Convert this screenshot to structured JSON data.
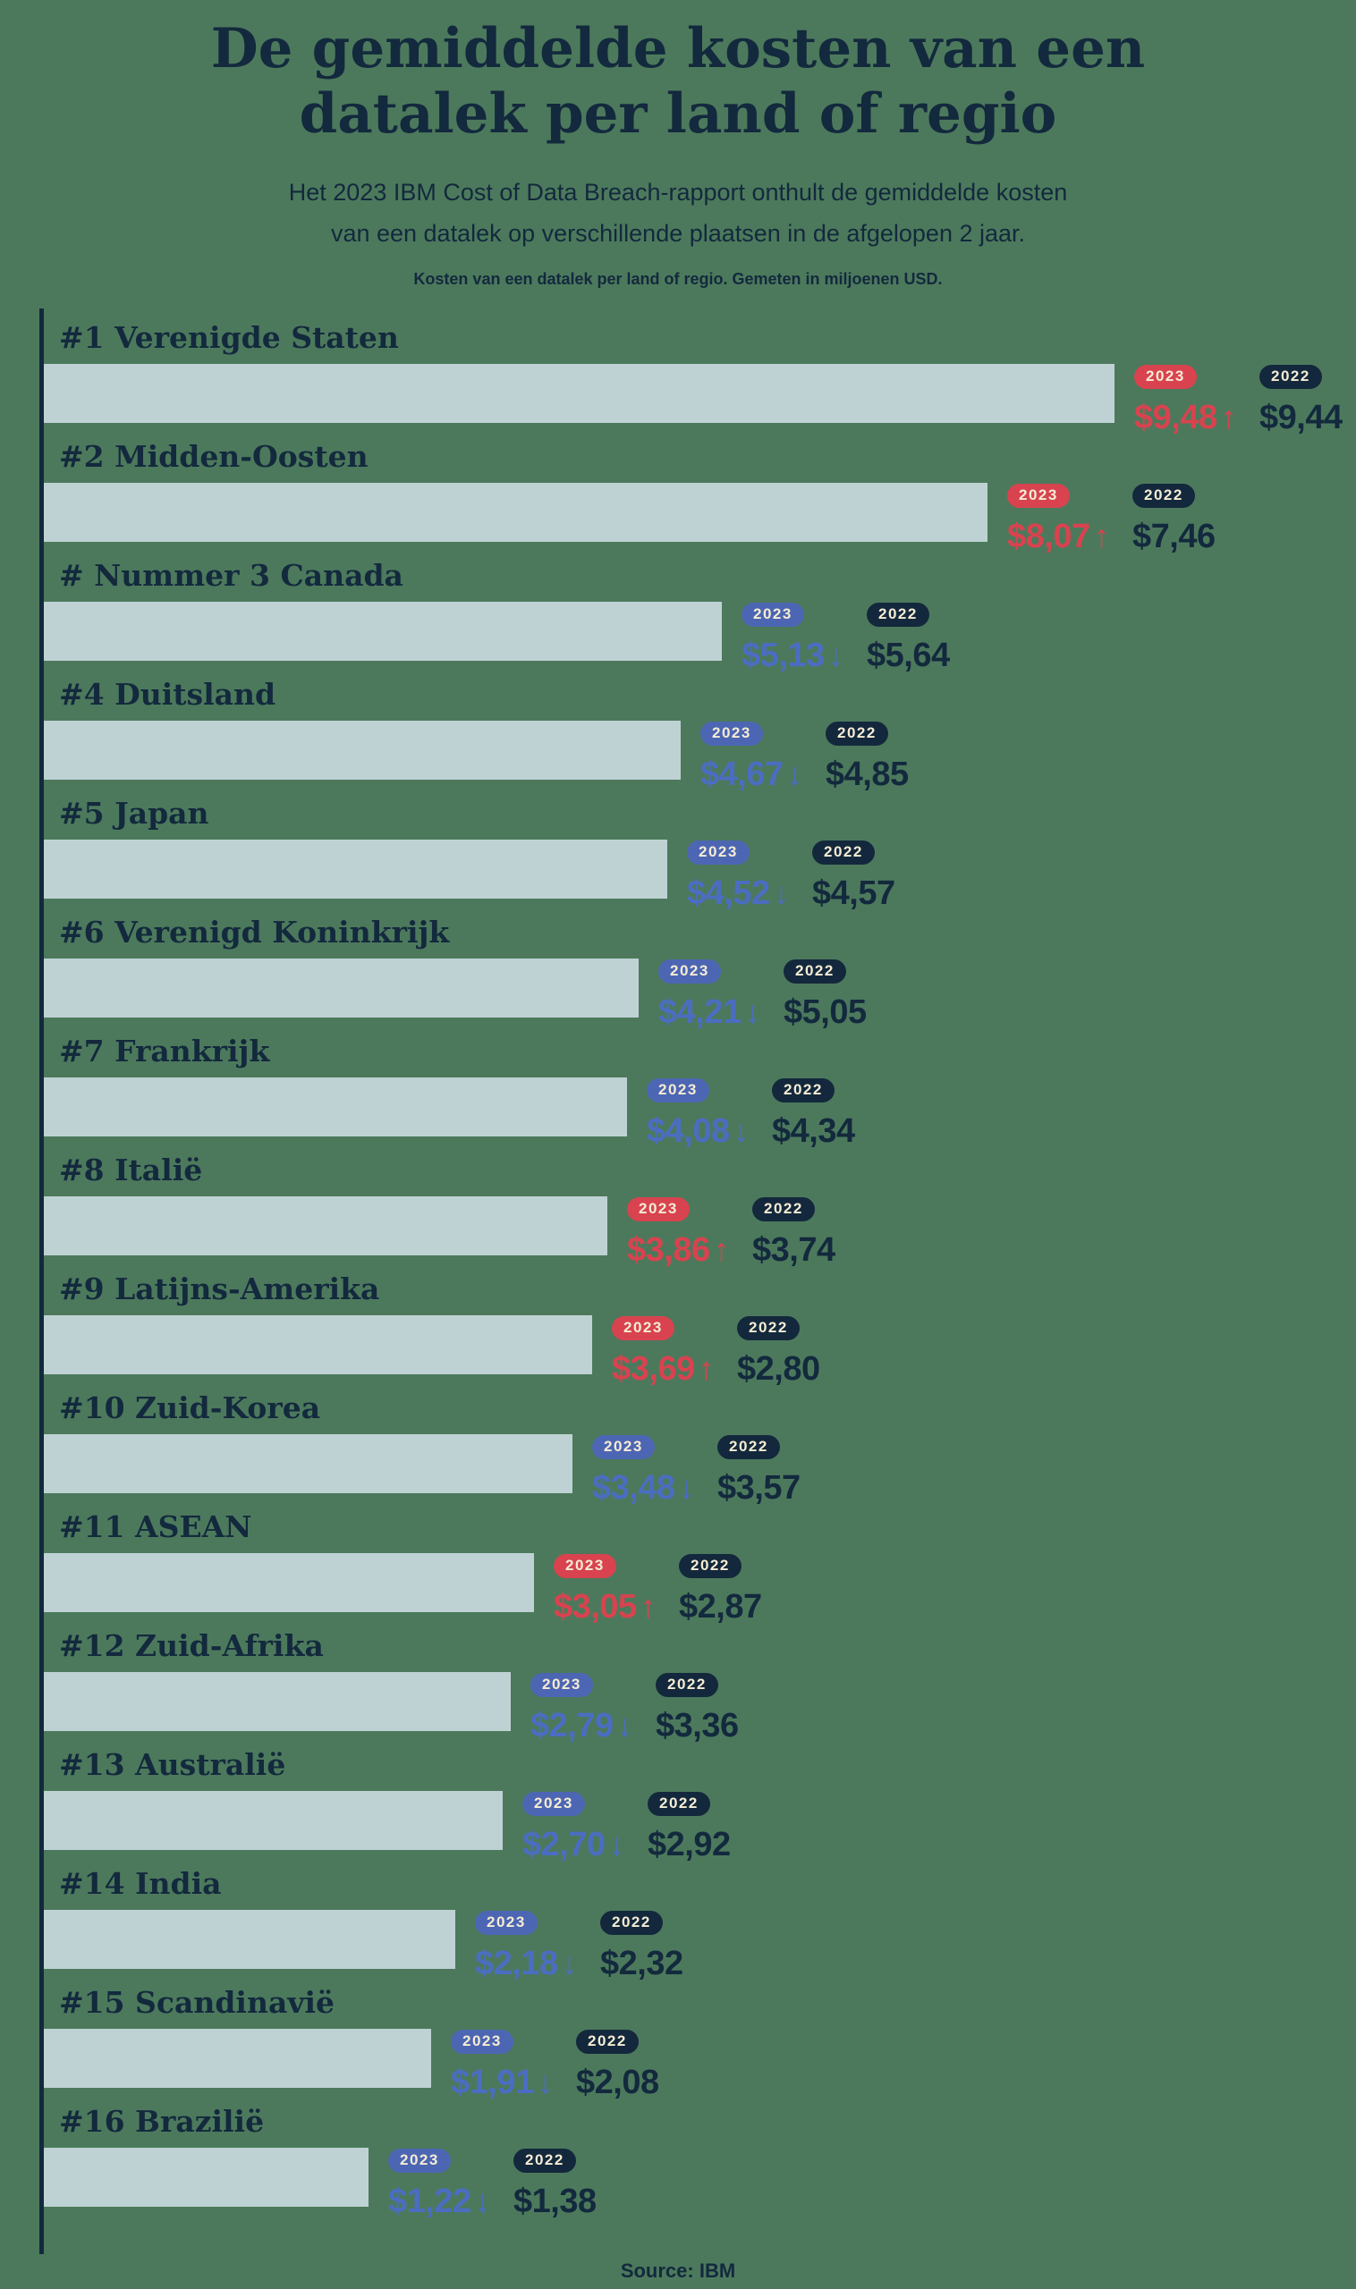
{
  "page": {
    "title_line1": "De gemiddelde kosten van een",
    "title_line2": "datalek per land of regio",
    "subtitle_line1": "Het 2023 IBM Cost of Data Breach-rapport onthult de gemiddelde kosten",
    "subtitle_line2": "van een datalek op verschillende plaatsen in de afgelopen 2 jaar.",
    "caption": "Kosten van een datalek per land of regio. Gemeten in miljoenen USD.",
    "source": "Source: IBM"
  },
  "colors": {
    "background_green": "#4c795c",
    "navy": "#13293d",
    "bar_fill": "#bed2d3",
    "increase_red": "#d8434f",
    "decrease_blue": "#4b6dc1",
    "badge_text_cream": "#f5ecd4"
  },
  "chart_data": {
    "type": "bar",
    "orientation": "horizontal",
    "unit": "miljoenen USD",
    "year_badge_2023": "2023",
    "year_badge_2022": "2022",
    "arrow_up": "↑",
    "arrow_down": "↓",
    "rows": [
      {
        "label": "#1 Verenigde Staten",
        "value_2023": 9.48,
        "display_2023": "$9,48",
        "value_2022": 9.44,
        "display_2022": "$9,44",
        "direction": "up"
      },
      {
        "label": "#2 Midden-Oosten",
        "value_2023": 8.07,
        "display_2023": "$8,07",
        "value_2022": 7.46,
        "display_2022": "$7,46",
        "direction": "up"
      },
      {
        "label": "# Nummer 3 Canada",
        "value_2023": 5.13,
        "display_2023": "$5,13",
        "value_2022": 5.64,
        "display_2022": "$5,64",
        "direction": "down"
      },
      {
        "label": "#4 Duitsland",
        "value_2023": 4.67,
        "display_2023": "$4,67",
        "value_2022": 4.85,
        "display_2022": "$4,85",
        "direction": "down"
      },
      {
        "label": "#5 Japan",
        "value_2023": 4.52,
        "display_2023": "$4,52",
        "value_2022": 4.57,
        "display_2022": "$4,57",
        "direction": "down"
      },
      {
        "label": "#6 Verenigd Koninkrijk",
        "value_2023": 4.21,
        "display_2023": "$4,21",
        "value_2022": 5.05,
        "display_2022": "$5,05",
        "direction": "down"
      },
      {
        "label": "#7 Frankrijk",
        "value_2023": 4.08,
        "display_2023": "$4,08",
        "value_2022": 4.34,
        "display_2022": "$4,34",
        "direction": "down"
      },
      {
        "label": "#8 Italië",
        "value_2023": 3.86,
        "display_2023": "$3,86",
        "value_2022": 3.74,
        "display_2022": "$3,74",
        "direction": "up"
      },
      {
        "label": "#9 Latijns-Amerika",
        "value_2023": 3.69,
        "display_2023": "$3,69",
        "value_2022": 2.8,
        "display_2022": "$2,80",
        "direction": "up"
      },
      {
        "label": "#10 Zuid-Korea",
        "value_2023": 3.48,
        "display_2023": "$3,48",
        "value_2022": 3.57,
        "display_2022": "$3,57",
        "direction": "down"
      },
      {
        "label": "#11 ASEAN",
        "value_2023": 3.05,
        "display_2023": "$3,05",
        "value_2022": 2.87,
        "display_2022": "$2,87",
        "direction": "up"
      },
      {
        "label": "#12 Zuid-Afrika",
        "value_2023": 2.79,
        "display_2023": "$2,79",
        "value_2022": 3.36,
        "display_2022": "$3,36",
        "direction": "down"
      },
      {
        "label": "#13 Australië",
        "value_2023": 2.7,
        "display_2023": "$2,70",
        "value_2022": 2.92,
        "display_2022": "$2,92",
        "direction": "down"
      },
      {
        "label": "#14 India",
        "value_2023": 2.18,
        "display_2023": "$2,18",
        "value_2022": 2.32,
        "display_2022": "$2,32",
        "direction": "down"
      },
      {
        "label": "#15 Scandinavië",
        "value_2023": 1.91,
        "display_2023": "$1,91",
        "value_2022": 2.08,
        "display_2022": "$2,08",
        "direction": "down"
      },
      {
        "label": "#16 Brazilië",
        "value_2023": 1.22,
        "display_2023": "$1,22",
        "value_2022": 1.38,
        "display_2022": "$1,38",
        "direction": "down"
      }
    ],
    "xlim": [
      0,
      10
    ],
    "grid": false,
    "legend": "inline badges per bar (2023 / 2022)"
  }
}
